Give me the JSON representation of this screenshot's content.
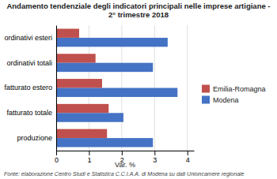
{
  "chart_data": {
    "type": "bar",
    "orientation": "horizontal",
    "title": "Andamento tendenziale degli indicatori principali nelle imprese artigiane - 2° trimestre 2018",
    "categories": [
      "produzione",
      "fatturato totale",
      "fatturato estero",
      "ordinativi totali",
      "ordinativi esteri"
    ],
    "series": [
      {
        "name": "Emilia-Romagna",
        "color": "#C0504D",
        "values": [
          1.55,
          1.6,
          1.4,
          1.2,
          0.7
        ]
      },
      {
        "name": "Modena",
        "color": "#4472C4",
        "values": [
          2.95,
          2.05,
          3.7,
          2.95,
          3.4
        ]
      }
    ],
    "xlabel": "Var. %",
    "xlim": [
      0,
      4.2
    ],
    "xticks": [
      0,
      1,
      2,
      3,
      4
    ],
    "grid": true,
    "legend": "right",
    "footnote": "Fonte: elaborazione Centro Studi e Statistica C.C.I.A.A. di Modena su dati Unioncamere regionale"
  }
}
